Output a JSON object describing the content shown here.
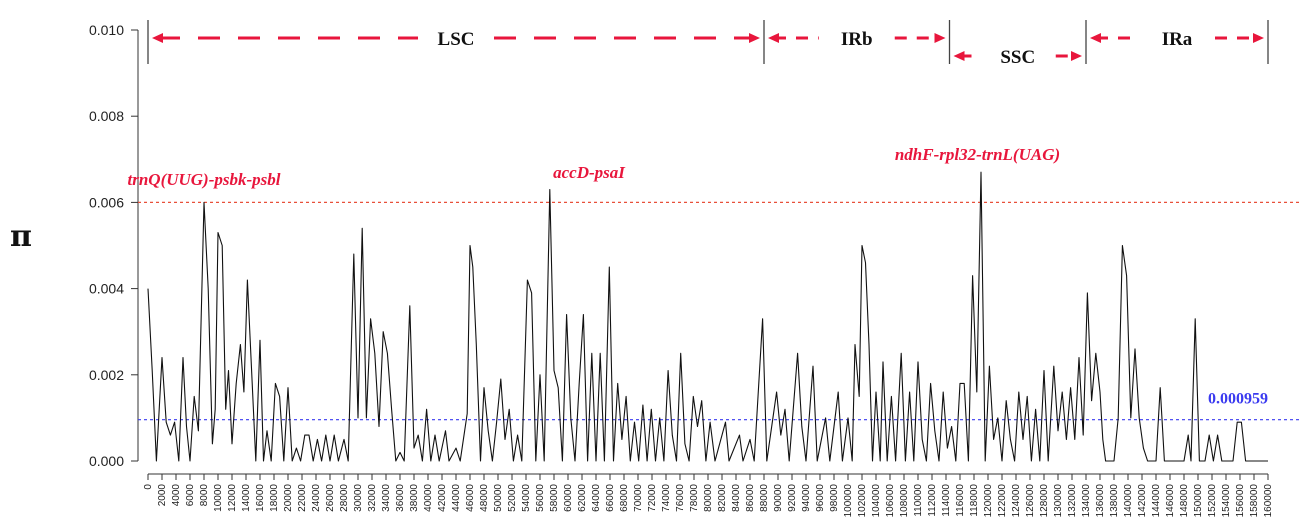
{
  "chart_data": {
    "type": "line",
    "title": "",
    "ylabel": "π",
    "xlabel": "",
    "xlim": [
      0,
      160000
    ],
    "ylim": [
      0,
      0.01
    ],
    "y_ticks": [
      {
        "value": 0.0,
        "label": "0.000"
      },
      {
        "value": 0.002,
        "label": "0.002"
      },
      {
        "value": 0.004,
        "label": "0.004"
      },
      {
        "value": 0.006,
        "label": "0.006"
      },
      {
        "value": 0.008,
        "label": "0.008"
      },
      {
        "value": 0.01,
        "label": "0.010"
      }
    ],
    "x_ticks": [
      "0",
      "2000",
      "4000",
      "6000",
      "8000",
      "10000",
      "12000",
      "14000",
      "16000",
      "18000",
      "20000",
      "22000",
      "24000",
      "26000",
      "28000",
      "30000",
      "32000",
      "34000",
      "36000",
      "38000",
      "40000",
      "42000",
      "44000",
      "46000",
      "48000",
      "50000",
      "52000",
      "54000",
      "56000",
      "58000",
      "60000",
      "62000",
      "64000",
      "66000",
      "68000",
      "70000",
      "72000",
      "74000",
      "76000",
      "78000",
      "80000",
      "82000",
      "84000",
      "86000",
      "88000",
      "90000",
      "92000",
      "94000",
      "96000",
      "98000",
      "100000",
      "102000",
      "104000",
      "106000",
      "108000",
      "110000",
      "112000",
      "114000",
      "116000",
      "118000",
      "120000",
      "122000",
      "124000",
      "126000",
      "128000",
      "130000",
      "132000",
      "134000",
      "136000",
      "138000",
      "140000",
      "142000",
      "144000",
      "146000",
      "148000",
      "150000",
      "152000",
      "154000",
      "156000",
      "158000",
      "160000"
    ],
    "thresholds": [
      {
        "value": 0.006,
        "color": "#e8503a",
        "label": ""
      },
      {
        "value": 0.000959,
        "color": "#3a3af0",
        "label": "0.000959"
      }
    ],
    "regions": [
      {
        "name": "LSC",
        "start": 0,
        "end": 88000
      },
      {
        "name": "IRb",
        "start": 88000,
        "end": 114500
      },
      {
        "name": "SSC",
        "start": 114500,
        "end": 134000
      },
      {
        "name": "IRa",
        "start": 134000,
        "end": 160000
      }
    ],
    "annotations": [
      {
        "text": "trnQ(UUG)-psbk-psbl",
        "x": 8000,
        "y": 0.006
      },
      {
        "text": "accD-psaI",
        "x": 63000,
        "y": 0.0063
      },
      {
        "text": "ndhF-rpl32-trnL(UAG)",
        "x": 118500,
        "y": 0.0067
      }
    ],
    "series": [
      {
        "color": "#111111",
        "points": [
          [
            0,
            0.004
          ],
          [
            600,
            0.0021
          ],
          [
            1200,
            0.0
          ],
          [
            2000,
            0.0024
          ],
          [
            2600,
            0.0009
          ],
          [
            3200,
            0.0006
          ],
          [
            3800,
            0.0009
          ],
          [
            4400,
            0.0
          ],
          [
            5000,
            0.0024
          ],
          [
            5500,
            0.0008
          ],
          [
            6000,
            0.0
          ],
          [
            6600,
            0.0015
          ],
          [
            7200,
            0.0007
          ],
          [
            8000,
            0.006
          ],
          [
            8600,
            0.004
          ],
          [
            9200,
            0.0004
          ],
          [
            9600,
            0.0012
          ],
          [
            10000,
            0.0053
          ],
          [
            10600,
            0.005
          ],
          [
            11100,
            0.0012
          ],
          [
            11500,
            0.0021
          ],
          [
            12000,
            0.0004
          ],
          [
            12600,
            0.0018
          ],
          [
            13200,
            0.0027
          ],
          [
            13700,
            0.0016
          ],
          [
            14200,
            0.0042
          ],
          [
            14800,
            0.0021
          ],
          [
            15400,
            0.0
          ],
          [
            16000,
            0.0028
          ],
          [
            16500,
            0.0
          ],
          [
            17000,
            0.0007
          ],
          [
            17600,
            0.0
          ],
          [
            18200,
            0.0018
          ],
          [
            18800,
            0.0015
          ],
          [
            19400,
            0.0
          ],
          [
            20000,
            0.0017
          ],
          [
            20600,
            0.0
          ],
          [
            21200,
            0.0003
          ],
          [
            21800,
            0.0
          ],
          [
            22400,
            0.0006
          ],
          [
            23000,
            0.0006
          ],
          [
            23600,
            0.0
          ],
          [
            24200,
            0.0005
          ],
          [
            24800,
            0.0
          ],
          [
            25400,
            0.0006
          ],
          [
            26000,
            0.0
          ],
          [
            26600,
            0.0006
          ],
          [
            27200,
            0.0
          ],
          [
            28000,
            0.0005
          ],
          [
            28600,
            0.0
          ],
          [
            29400,
            0.0048
          ],
          [
            30000,
            0.001
          ],
          [
            30600,
            0.0054
          ],
          [
            31200,
            0.001
          ],
          [
            31800,
            0.0033
          ],
          [
            32400,
            0.0025
          ],
          [
            33000,
            0.0008
          ],
          [
            33600,
            0.003
          ],
          [
            34200,
            0.0025
          ],
          [
            34800,
            0.0012
          ],
          [
            35400,
            0.0
          ],
          [
            36000,
            0.0002
          ],
          [
            36600,
            0.0
          ],
          [
            37400,
            0.0036
          ],
          [
            38000,
            0.0003
          ],
          [
            38600,
            0.0006
          ],
          [
            39200,
            0.0
          ],
          [
            39800,
            0.0012
          ],
          [
            40400,
            0.0
          ],
          [
            41000,
            0.0006
          ],
          [
            41600,
            0.0
          ],
          [
            42500,
            0.0007
          ],
          [
            43000,
            0.0
          ],
          [
            44000,
            0.0003
          ],
          [
            44600,
            0.0
          ],
          [
            45600,
            0.0011
          ],
          [
            46000,
            0.005
          ],
          [
            46400,
            0.0045
          ],
          [
            46900,
            0.0027
          ],
          [
            47500,
            0.0
          ],
          [
            48000,
            0.0017
          ],
          [
            48600,
            0.0007
          ],
          [
            49200,
            0.0
          ],
          [
            49800,
            0.0009
          ],
          [
            50400,
            0.0019
          ],
          [
            51000,
            0.0005
          ],
          [
            51600,
            0.0012
          ],
          [
            52200,
            0.0
          ],
          [
            52800,
            0.0006
          ],
          [
            53400,
            0.0
          ],
          [
            54200,
            0.0042
          ],
          [
            54800,
            0.0039
          ],
          [
            55400,
            0.0
          ],
          [
            56000,
            0.002
          ],
          [
            56600,
            0.0
          ],
          [
            57400,
            0.0063
          ],
          [
            58000,
            0.0021
          ],
          [
            58600,
            0.0017
          ],
          [
            59200,
            0.0
          ],
          [
            59800,
            0.0034
          ],
          [
            60400,
            0.001
          ],
          [
            61000,
            0.0
          ],
          [
            61600,
            0.0018
          ],
          [
            62200,
            0.0034
          ],
          [
            62800,
            0.0
          ],
          [
            63400,
            0.0025
          ],
          [
            64000,
            0.0
          ],
          [
            64600,
            0.0025
          ],
          [
            65200,
            0.0
          ],
          [
            65900,
            0.0045
          ],
          [
            66500,
            0.0
          ],
          [
            67100,
            0.0018
          ],
          [
            67700,
            0.0005
          ],
          [
            68300,
            0.0015
          ],
          [
            68900,
            0.0
          ],
          [
            69500,
            0.0009
          ],
          [
            70100,
            0.0
          ],
          [
            70700,
            0.0013
          ],
          [
            71300,
            0.0
          ],
          [
            71900,
            0.0012
          ],
          [
            72500,
            0.0
          ],
          [
            73100,
            0.001
          ],
          [
            73700,
            0.0
          ],
          [
            74300,
            0.0021
          ],
          [
            74900,
            0.0006
          ],
          [
            75500,
            0.0
          ],
          [
            76100,
            0.0025
          ],
          [
            76700,
            0.0004
          ],
          [
            77300,
            0.0
          ],
          [
            77900,
            0.0015
          ],
          [
            78500,
            0.0008
          ],
          [
            79100,
            0.0014
          ],
          [
            79700,
            0.0
          ],
          [
            80300,
            0.0009
          ],
          [
            81000,
            0.0
          ],
          [
            82500,
            0.0009
          ],
          [
            83000,
            0.0
          ],
          [
            84500,
            0.0006
          ],
          [
            85000,
            0.0
          ],
          [
            86000,
            0.0005
          ],
          [
            86600,
            0.0
          ],
          [
            87800,
            0.0033
          ],
          [
            88400,
            0.0
          ],
          [
            89800,
            0.0016
          ],
          [
            90400,
            0.0006
          ],
          [
            91000,
            0.0012
          ],
          [
            91600,
            0.0
          ],
          [
            92800,
            0.0025
          ],
          [
            93400,
            0.0008
          ],
          [
            94000,
            0.0
          ],
          [
            95000,
            0.0022
          ],
          [
            95600,
            0.0
          ],
          [
            96800,
            0.001
          ],
          [
            97400,
            0.0
          ],
          [
            98600,
            0.0016
          ],
          [
            99200,
            0.0
          ],
          [
            100000,
            0.001
          ],
          [
            100600,
            0.0
          ],
          [
            101000,
            0.0027
          ],
          [
            101600,
            0.0015
          ],
          [
            102000,
            0.005
          ],
          [
            102500,
            0.0046
          ],
          [
            103000,
            0.0027
          ],
          [
            103500,
            0.0
          ],
          [
            104000,
            0.0016
          ],
          [
            104600,
            0.0
          ],
          [
            105000,
            0.0023
          ],
          [
            105600,
            0.0
          ],
          [
            106200,
            0.0015
          ],
          [
            106800,
            0.0
          ],
          [
            107600,
            0.0025
          ],
          [
            108200,
            0.0
          ],
          [
            108800,
            0.0016
          ],
          [
            109400,
            0.0
          ],
          [
            110000,
            0.0023
          ],
          [
            110600,
            0.0005
          ],
          [
            111200,
            0.0
          ],
          [
            111800,
            0.0018
          ],
          [
            112400,
            0.0007
          ],
          [
            113000,
            0.0
          ],
          [
            113600,
            0.0016
          ],
          [
            114200,
            0.0003
          ],
          [
            114800,
            0.0008
          ],
          [
            115400,
            0.0
          ],
          [
            116000,
            0.0018
          ],
          [
            116600,
            0.0018
          ],
          [
            117200,
            0.0
          ],
          [
            117800,
            0.0043
          ],
          [
            118400,
            0.0016
          ],
          [
            119000,
            0.0067
          ],
          [
            119600,
            0.0
          ],
          [
            120200,
            0.0022
          ],
          [
            120800,
            0.0005
          ],
          [
            121400,
            0.001
          ],
          [
            122000,
            0.0
          ],
          [
            122600,
            0.0014
          ],
          [
            123200,
            0.0005
          ],
          [
            123800,
            0.0
          ],
          [
            124400,
            0.0016
          ],
          [
            125000,
            0.0005
          ],
          [
            125600,
            0.0015
          ],
          [
            126200,
            0.0
          ],
          [
            126800,
            0.0012
          ],
          [
            127400,
            0.0
          ],
          [
            128000,
            0.0021
          ],
          [
            128600,
            0.0
          ],
          [
            129400,
            0.0022
          ],
          [
            130000,
            0.0007
          ],
          [
            130600,
            0.0016
          ],
          [
            131200,
            0.0005
          ],
          [
            131800,
            0.0017
          ],
          [
            132400,
            0.0005
          ],
          [
            133000,
            0.0024
          ],
          [
            133600,
            0.0006
          ],
          [
            134200,
            0.0039
          ],
          [
            134800,
            0.0014
          ],
          [
            135400,
            0.0025
          ],
          [
            136000,
            0.0016
          ],
          [
            136400,
            0.0005
          ],
          [
            136800,
            0.0
          ],
          [
            138000,
            0.0
          ],
          [
            138600,
            0.001
          ],
          [
            139200,
            0.005
          ],
          [
            139800,
            0.0043
          ],
          [
            140400,
            0.001
          ],
          [
            141000,
            0.0026
          ],
          [
            141600,
            0.001
          ],
          [
            142200,
            0.0003
          ],
          [
            142800,
            0.0
          ],
          [
            144000,
            0.0
          ],
          [
            144600,
            0.0017
          ],
          [
            145200,
            0.0
          ],
          [
            148000,
            0.0
          ],
          [
            148600,
            0.0006
          ],
          [
            149000,
            0.0
          ],
          [
            149600,
            0.0033
          ],
          [
            150200,
            0.0
          ],
          [
            151000,
            0.0
          ],
          [
            151600,
            0.0006
          ],
          [
            152200,
            0.0
          ],
          [
            152800,
            0.0006
          ],
          [
            153400,
            0.0
          ],
          [
            155000,
            0.0
          ],
          [
            155600,
            0.0009
          ],
          [
            156200,
            0.0009
          ],
          [
            156800,
            0.0
          ],
          [
            160000,
            0.0
          ]
        ]
      }
    ]
  }
}
